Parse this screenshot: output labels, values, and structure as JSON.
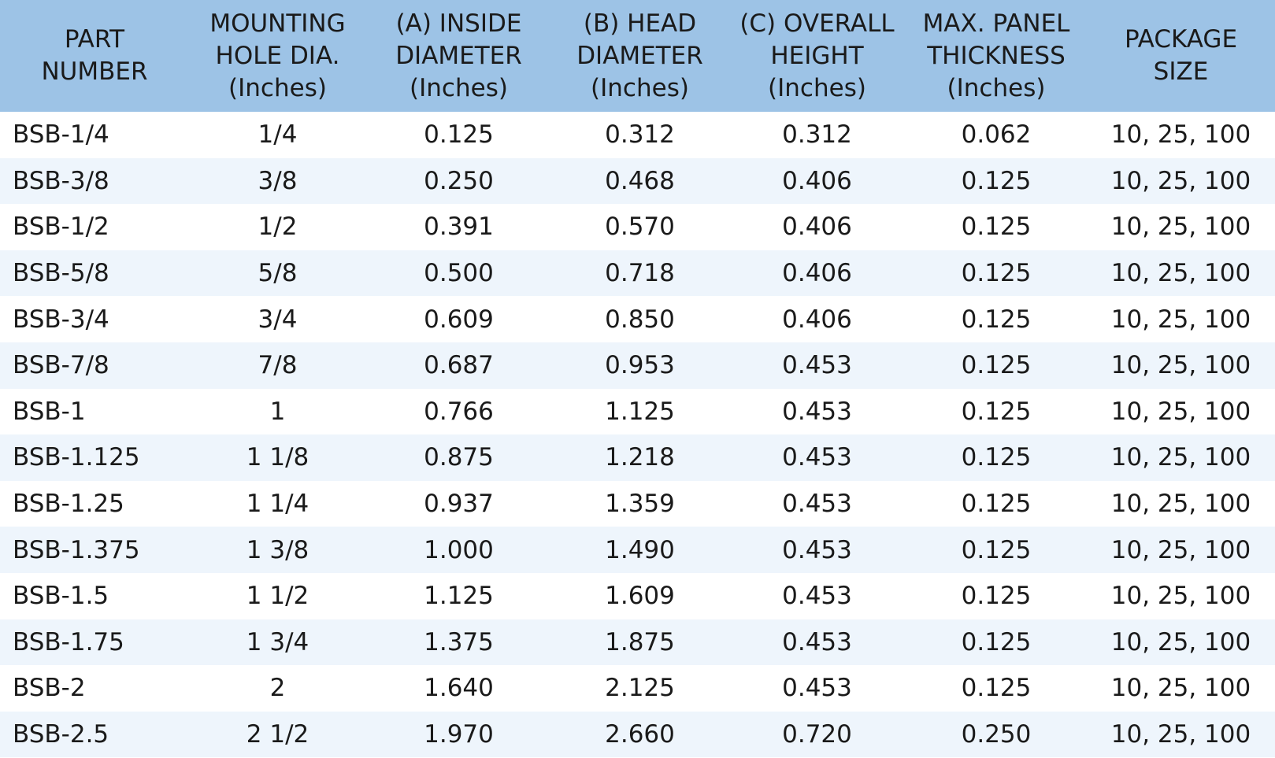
{
  "table": {
    "headers": [
      [
        "PART",
        "NUMBER"
      ],
      [
        "MOUNTING",
        "HOLE DIA.",
        "(Inches)"
      ],
      [
        "(A) INSIDE",
        "DIAMETER",
        "(Inches)"
      ],
      [
        "(B) HEAD",
        "DIAMETER",
        "(Inches)"
      ],
      [
        "(C) OVERALL",
        "HEIGHT",
        "(Inches)"
      ],
      [
        "MAX. PANEL",
        "THICKNESS",
        "(Inches)"
      ],
      [
        "PACKAGE",
        "SIZE"
      ]
    ],
    "rows": [
      [
        "BSB-1/4",
        "1/4",
        "0.125",
        "0.312",
        "0.312",
        "0.062",
        "10, 25, 100"
      ],
      [
        "BSB-3/8",
        "3/8",
        "0.250",
        "0.468",
        "0.406",
        "0.125",
        "10, 25, 100"
      ],
      [
        "BSB-1/2",
        "1/2",
        "0.391",
        "0.570",
        "0.406",
        "0.125",
        "10, 25, 100"
      ],
      [
        "BSB-5/8",
        "5/8",
        "0.500",
        "0.718",
        "0.406",
        "0.125",
        "10, 25, 100"
      ],
      [
        "BSB-3/4",
        "3/4",
        "0.609",
        "0.850",
        "0.406",
        "0.125",
        "10, 25, 100"
      ],
      [
        "BSB-7/8",
        "7/8",
        "0.687",
        "0.953",
        "0.453",
        "0.125",
        "10, 25, 100"
      ],
      [
        "BSB-1",
        "1",
        "0.766",
        "1.125",
        "0.453",
        "0.125",
        "10, 25, 100"
      ],
      [
        "BSB-1.125",
        "1 1/8",
        "0.875",
        "1.218",
        "0.453",
        "0.125",
        "10, 25, 100"
      ],
      [
        "BSB-1.25",
        "1 1/4",
        "0.937",
        "1.359",
        "0.453",
        "0.125",
        "10, 25, 100"
      ],
      [
        "BSB-1.375",
        "1 3/8",
        "1.000",
        "1.490",
        "0.453",
        "0.125",
        "10, 25, 100"
      ],
      [
        "BSB-1.5",
        "1 1/2",
        "1.125",
        "1.609",
        "0.453",
        "0.125",
        "10, 25, 100"
      ],
      [
        "BSB-1.75",
        "1 3/4",
        "1.375",
        "1.875",
        "0.453",
        "0.125",
        "10, 25, 100"
      ],
      [
        "BSB-2",
        "2",
        "1.640",
        "2.125",
        "0.453",
        "0.125",
        "10, 25, 100"
      ],
      [
        "BSB-2.5",
        "2 1/2",
        "1.970",
        "2.660",
        "0.720",
        "0.250",
        "10, 25, 100"
      ]
    ]
  },
  "colors": {
    "header_bg": "#9dc3e6",
    "row_alt_bg": "#eef5fc",
    "row_bg": "#ffffff"
  }
}
